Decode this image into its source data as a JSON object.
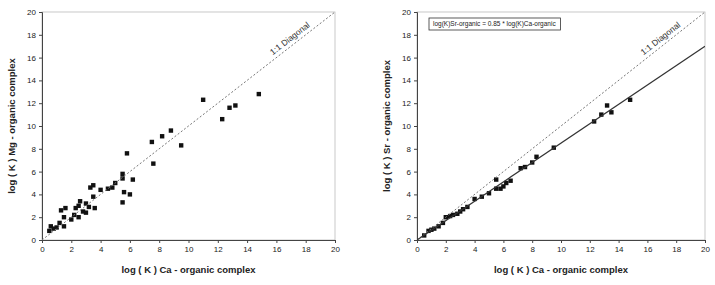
{
  "chart_data": [
    {
      "type": "scatter",
      "x_label": "log ( K )  Ca - organic complex",
      "y_label": "log ( K )  Mg - organic complex",
      "xlim": [
        0,
        20
      ],
      "ylim": [
        0,
        20
      ],
      "xticks": [
        0,
        2,
        4,
        6,
        8,
        10,
        12,
        14,
        16,
        18,
        20
      ],
      "yticks": [
        0,
        2,
        4,
        6,
        8,
        10,
        12,
        14,
        16,
        18,
        20
      ],
      "series": [
        {
          "type": "scatter",
          "marker": "square",
          "color": "#111111",
          "x": [
            0.5,
            0.6,
            0.8,
            1.0,
            1.2,
            1.3,
            1.5,
            1.6,
            1.5,
            2.0,
            2.2,
            2.3,
            2.5,
            2.5,
            2.6,
            2.8,
            3.0,
            3.0,
            3.2,
            3.3,
            3.5,
            3.5,
            3.6,
            4.0,
            4.5,
            4.8,
            5.0,
            5.5,
            5.5,
            5.5,
            5.6,
            5.8,
            6.0,
            6.2,
            7.5,
            7.6,
            8.2,
            8.8,
            9.5,
            11.0,
            12.3,
            12.8,
            13.2,
            14.8
          ],
          "values": [
            0.8,
            1.2,
            1.0,
            1.1,
            1.5,
            2.6,
            2.0,
            2.8,
            1.2,
            1.8,
            2.2,
            2.8,
            3.0,
            2.0,
            3.4,
            2.5,
            2.4,
            3.2,
            2.9,
            4.6,
            4.8,
            3.8,
            2.8,
            4.4,
            4.5,
            4.6,
            5.0,
            5.4,
            5.8,
            3.3,
            4.2,
            7.6,
            4.0,
            5.3,
            8.6,
            6.7,
            9.1,
            9.6,
            8.3,
            12.3,
            10.6,
            11.6,
            11.8,
            12.8
          ]
        },
        {
          "type": "line",
          "name": "1:1 Diagonal",
          "line_style": "dotted",
          "color": "#777777",
          "x": [
            0,
            20
          ],
          "values": [
            0,
            20
          ]
        }
      ]
    },
    {
      "type": "scatter",
      "x_label": "log ( K )  Ca - organic complex",
      "y_label": "log ( K )  Sr - organic complex",
      "xlim": [
        0,
        20
      ],
      "ylim": [
        0,
        20
      ],
      "xticks": [
        0,
        2,
        4,
        6,
        8,
        10,
        12,
        14,
        16,
        18,
        20
      ],
      "yticks": [
        0,
        2,
        4,
        6,
        8,
        10,
        12,
        14,
        16,
        18,
        20
      ],
      "annotations": [
        "log(K)Sr-organic = 0.85 * log(K)Ca-organic"
      ],
      "series": [
        {
          "type": "scatter",
          "marker": "square",
          "color": "#111111",
          "x": [
            0.5,
            0.8,
            1.0,
            1.2,
            1.5,
            1.8,
            2.0,
            2.3,
            2.5,
            2.8,
            3.0,
            3.2,
            3.5,
            4.0,
            4.5,
            5.0,
            5.5,
            5.5,
            5.8,
            6.0,
            6.2,
            6.5,
            7.2,
            7.5,
            8.0,
            8.3,
            9.5,
            12.3,
            12.8,
            13.2,
            13.5,
            14.8
          ],
          "values": [
            0.4,
            0.8,
            0.9,
            1.0,
            1.2,
            1.5,
            2.0,
            2.1,
            2.2,
            2.3,
            2.5,
            2.7,
            2.9,
            3.6,
            3.8,
            4.1,
            5.3,
            4.5,
            4.5,
            4.7,
            5.0,
            5.2,
            6.3,
            6.4,
            6.8,
            7.3,
            8.1,
            10.4,
            11.0,
            11.8,
            11.2,
            12.3
          ]
        },
        {
          "type": "line",
          "name": "1:1 Diagonal",
          "line_style": "dotted",
          "color": "#777777",
          "x": [
            0,
            20
          ],
          "values": [
            0,
            20
          ]
        },
        {
          "type": "line",
          "line_style": "solid",
          "color": "#333333",
          "x": [
            0,
            20
          ],
          "values": [
            0,
            17
          ]
        }
      ]
    }
  ]
}
